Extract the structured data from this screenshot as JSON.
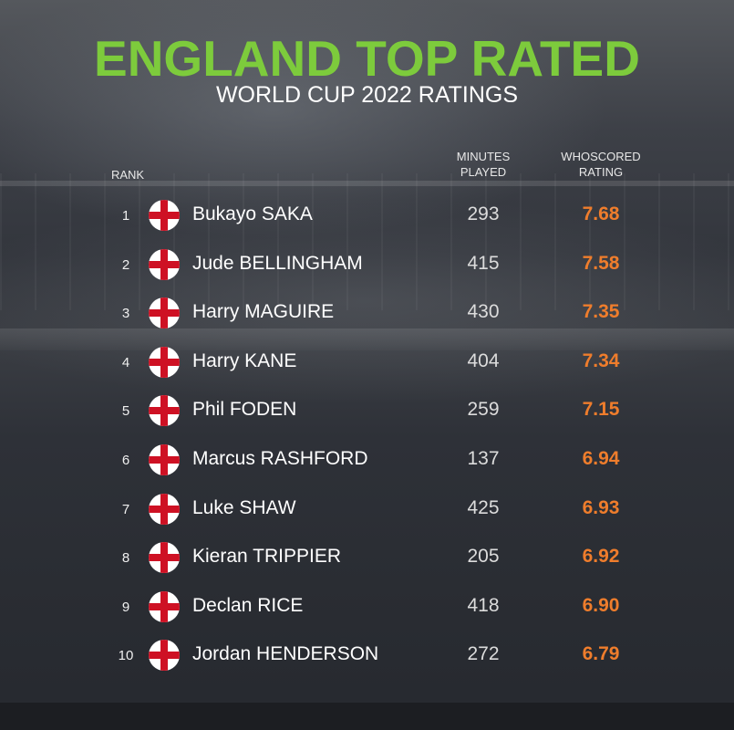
{
  "title": "ENGLAND TOP RATED",
  "subtitle": "WORLD CUP 2022 RATINGS",
  "headers": {
    "rank": "RANK",
    "minutes_line1": "MINUTES",
    "minutes_line2": "PLAYED",
    "rating_line1": "WHOSCORED",
    "rating_line2": "RATING"
  },
  "colors": {
    "title": "#7dcb3c",
    "rating": "#ef7d2c",
    "flag_red": "#ce1124"
  },
  "chart_data": {
    "type": "table",
    "title": "ENGLAND TOP RATED",
    "subtitle": "WORLD CUP 2022 RATINGS",
    "columns": [
      "RANK",
      "",
      "MINUTES PLAYED",
      "WHOSCORED RATING"
    ],
    "rows": [
      {
        "rank": "1",
        "player": "Bukayo SAKA",
        "minutes": "293",
        "rating": "7.68"
      },
      {
        "rank": "2",
        "player": "Jude BELLINGHAM",
        "minutes": "415",
        "rating": "7.58"
      },
      {
        "rank": "3",
        "player": "Harry MAGUIRE",
        "minutes": "430",
        "rating": "7.35"
      },
      {
        "rank": "4",
        "player": "Harry KANE",
        "minutes": "404",
        "rating": "7.34"
      },
      {
        "rank": "5",
        "player": "Phil FODEN",
        "minutes": "259",
        "rating": "7.15"
      },
      {
        "rank": "6",
        "player": "Marcus RASHFORD",
        "minutes": "137",
        "rating": "6.94"
      },
      {
        "rank": "7",
        "player": "Luke SHAW",
        "minutes": "425",
        "rating": "6.93"
      },
      {
        "rank": "8",
        "player": "Kieran TRIPPIER",
        "minutes": "205",
        "rating": "6.92"
      },
      {
        "rank": "9",
        "player": "Declan RICE",
        "minutes": "418",
        "rating": "6.90"
      },
      {
        "rank": "10",
        "player": "Jordan HENDERSON",
        "minutes": "272",
        "rating": "6.79"
      }
    ]
  }
}
